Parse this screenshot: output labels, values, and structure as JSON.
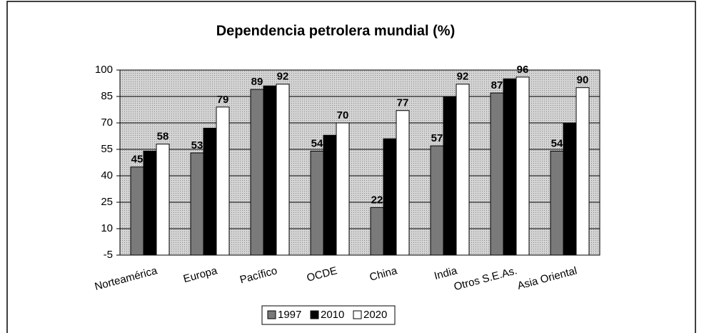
{
  "chart_data": {
    "type": "bar",
    "title": "Dependencia petrolera mundial (%)",
    "categories": [
      "Norteamérica",
      "Europa",
      "Pacífico",
      "OCDE",
      "China",
      "India",
      "Otros S.E.As.",
      "Asia Oriental"
    ],
    "series": [
      {
        "name": "1997",
        "color": "#7a7a7a",
        "data_labels": true,
        "values": [
          45,
          53,
          89,
          54,
          22,
          57,
          87,
          54
        ]
      },
      {
        "name": "2010",
        "color": "#000000",
        "data_labels": false,
        "values": [
          54,
          67,
          91,
          63,
          61,
          85,
          95,
          70
        ]
      },
      {
        "name": "2020",
        "color": "#ffffff",
        "data_labels": true,
        "values": [
          58,
          79,
          92,
          70,
          77,
          92,
          96,
          90
        ]
      }
    ],
    "ylim": [
      -5,
      100
    ],
    "yticks": [
      -5,
      10,
      25,
      40,
      55,
      70,
      85,
      100
    ],
    "grid": true,
    "legend": "bottom"
  }
}
